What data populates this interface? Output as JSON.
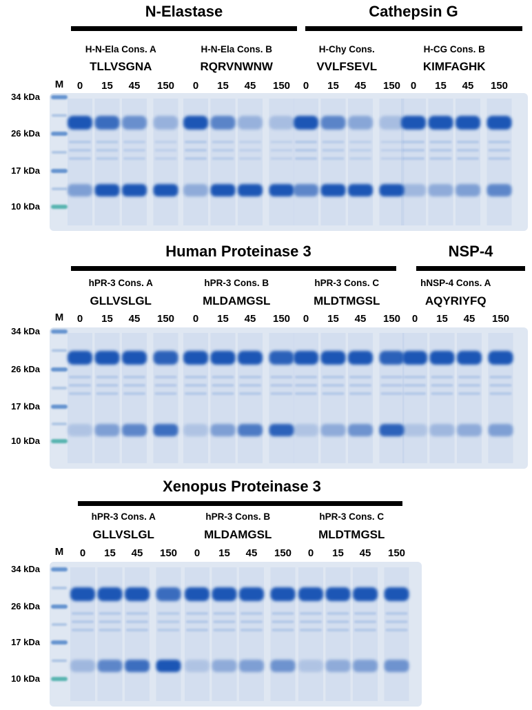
{
  "colors": {
    "gel_background": "#dfe7f2",
    "band_dark": "#1a56b5",
    "band_light": "#4a7fd0",
    "marker_ladder": "#3d78c4",
    "marker_green": "#2aa39a",
    "title_bar": "#000000"
  },
  "panels": [
    {
      "id": "panel-1",
      "lane_marker_label": "M",
      "mw_labels": [
        "34 kDa",
        "26 kDa",
        "17 kDa",
        "10 kDa"
      ],
      "time_points": [
        "0",
        "15",
        "45",
        "150"
      ],
      "enzymes": [
        {
          "name": "N-Elastase"
        },
        {
          "name": "Cathepsin G"
        }
      ],
      "groups": [
        {
          "construct": "H-N-Ela Cons. A",
          "sequence": "TLLVSGNA",
          "substrate_level": [
            1.0,
            0.8,
            0.5,
            0.2
          ],
          "product_level": [
            0.4,
            1.0,
            1.0,
            1.0
          ]
        },
        {
          "construct": "H-N-Ela Cons. B",
          "sequence": "RQRVNWNW",
          "substrate_level": [
            1.0,
            0.6,
            0.2,
            0.1
          ],
          "product_level": [
            0.3,
            1.0,
            1.0,
            1.0
          ]
        },
        {
          "construct": "H-Chy Cons.",
          "sequence": "VVLFSEVL",
          "substrate_level": [
            1.0,
            0.6,
            0.3,
            0.1
          ],
          "product_level": [
            0.6,
            1.0,
            1.0,
            1.0
          ]
        },
        {
          "construct": "H-CG Cons. B",
          "sequence": "KIMFAGHK",
          "substrate_level": [
            1.0,
            1.0,
            1.0,
            1.0
          ],
          "product_level": [
            0.2,
            0.3,
            0.4,
            0.6
          ]
        }
      ]
    },
    {
      "id": "panel-2",
      "lane_marker_label": "M",
      "mw_labels": [
        "34 kDa",
        "26 kDa",
        "17 kDa",
        "10 kDa"
      ],
      "time_points": [
        "0",
        "15",
        "45",
        "150"
      ],
      "enzymes": [
        {
          "name": "Human Proteinase 3"
        },
        {
          "name": "NSP-4"
        }
      ],
      "groups": [
        {
          "construct": "hPR-3 Cons. A",
          "sequence": "GLLVSLGL",
          "substrate_level": [
            1.0,
            1.0,
            1.0,
            0.9
          ],
          "product_level": [
            0.1,
            0.4,
            0.6,
            0.8
          ]
        },
        {
          "construct": "hPR-3 Cons. B",
          "sequence": "MLDAMGSL",
          "substrate_level": [
            1.0,
            1.0,
            1.0,
            0.9
          ],
          "product_level": [
            0.1,
            0.4,
            0.7,
            0.9
          ]
        },
        {
          "construct": "hPR-3 Cons. C",
          "sequence": "MLDTMGSL",
          "substrate_level": [
            1.0,
            1.0,
            1.0,
            0.9
          ],
          "product_level": [
            0.1,
            0.3,
            0.5,
            0.9
          ]
        },
        {
          "construct": "hNSP-4 Cons. A",
          "sequence": "AQYRIYFQ",
          "substrate_level": [
            1.0,
            1.0,
            1.0,
            1.0
          ],
          "product_level": [
            0.1,
            0.2,
            0.3,
            0.4
          ]
        }
      ]
    },
    {
      "id": "panel-3",
      "lane_marker_label": "M",
      "mw_labels": [
        "34 kDa",
        "26 kDa",
        "17 kDa",
        "10 kDa"
      ],
      "time_points": [
        "0",
        "15",
        "45",
        "150"
      ],
      "enzymes": [
        {
          "name": "Xenopus Proteinase 3"
        }
      ],
      "groups": [
        {
          "construct": "hPR-3 Cons. A",
          "sequence": "GLLVSLGL",
          "substrate_level": [
            1.0,
            1.0,
            1.0,
            0.8
          ],
          "product_level": [
            0.2,
            0.6,
            0.8,
            1.0
          ]
        },
        {
          "construct": "hPR-3 Cons. B",
          "sequence": "MLDAMGSL",
          "substrate_level": [
            1.0,
            1.0,
            1.0,
            1.0
          ],
          "product_level": [
            0.1,
            0.3,
            0.4,
            0.5
          ]
        },
        {
          "construct": "hPR-3 Cons. C",
          "sequence": "MLDTMGSL",
          "substrate_level": [
            1.0,
            1.0,
            1.0,
            1.0
          ],
          "product_level": [
            0.1,
            0.3,
            0.4,
            0.5
          ]
        }
      ]
    }
  ]
}
